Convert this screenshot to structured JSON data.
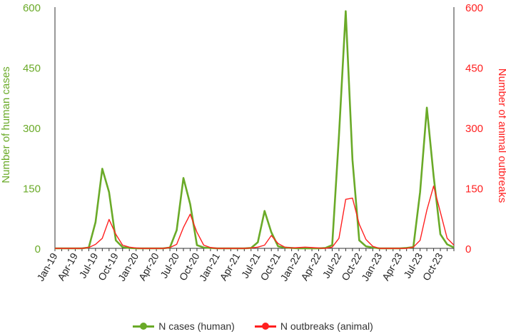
{
  "chart_data": {
    "type": "line",
    "title": "",
    "xlabel": "",
    "ylabel_left": "Number of human cases",
    "ylabel_right": "Number of animal outbreaks",
    "ylim_left": [
      0,
      600
    ],
    "ylim_right": [
      0,
      600
    ],
    "yticks_left": [
      "0",
      "150",
      "300",
      "450",
      "600"
    ],
    "yticks_right": [
      "0",
      "150",
      "300",
      "450",
      "600"
    ],
    "grid": false,
    "legend_position": "bottom",
    "x_tick_labels": [
      "Jan-19",
      "Apr-19",
      "Jul-19",
      "Oct-19",
      "Jan-20",
      "Apr-20",
      "Jul-20",
      "Oct-20",
      "Jan-21",
      "Apr-21",
      "Jul-21",
      "Oct-21",
      "Jan-22",
      "Apr-22",
      "Jul-22",
      "Oct-22",
      "Jan-23",
      "Apr-23",
      "Jul-23",
      "Oct-23"
    ],
    "x": [
      "Jan-19",
      "Feb-19",
      "Mar-19",
      "Apr-19",
      "May-19",
      "Jun-19",
      "Jul-19",
      "Aug-19",
      "Sep-19",
      "Oct-19",
      "Nov-19",
      "Dec-19",
      "Jan-20",
      "Feb-20",
      "Mar-20",
      "Apr-20",
      "May-20",
      "Jun-20",
      "Jul-20",
      "Aug-20",
      "Sep-20",
      "Oct-20",
      "Nov-20",
      "Dec-20",
      "Jan-21",
      "Feb-21",
      "Mar-21",
      "Apr-21",
      "May-21",
      "Jun-21",
      "Jul-21",
      "Aug-21",
      "Sep-21",
      "Oct-21",
      "Nov-21",
      "Dec-21",
      "Jan-22",
      "Feb-22",
      "Mar-22",
      "Apr-22",
      "May-22",
      "Jun-22",
      "Jul-22",
      "Aug-22",
      "Sep-22",
      "Oct-22",
      "Nov-22",
      "Dec-22",
      "Jan-23",
      "Feb-23",
      "Mar-23",
      "Apr-23",
      "May-23",
      "Jun-23",
      "Jul-23",
      "Aug-23",
      "Sep-23",
      "Oct-23",
      "Nov-23",
      "Dec-23"
    ],
    "series": [
      {
        "name": "N cases (human)",
        "axis": "left",
        "color": "#6aaa28",
        "marker": "circle",
        "values": [
          0,
          0,
          0,
          0,
          0,
          2,
          65,
          198,
          140,
          20,
          3,
          1,
          0,
          0,
          0,
          0,
          0,
          2,
          45,
          175,
          110,
          8,
          2,
          1,
          0,
          0,
          0,
          0,
          0,
          1,
          15,
          93,
          40,
          5,
          2,
          1,
          0,
          0,
          0,
          0,
          1,
          8,
          280,
          590,
          220,
          20,
          5,
          2,
          0,
          0,
          0,
          0,
          1,
          3,
          140,
          350,
          180,
          35,
          10,
          2
        ]
      },
      {
        "name": "N outbreaks (animal)",
        "axis": "right",
        "color": "#ff2020",
        "marker": "circle",
        "values": [
          0,
          0,
          0,
          0,
          0,
          2,
          10,
          25,
          72,
          35,
          8,
          3,
          1,
          0,
          0,
          0,
          0,
          2,
          10,
          52,
          85,
          40,
          8,
          2,
          0,
          0,
          0,
          0,
          0,
          1,
          3,
          8,
          32,
          12,
          3,
          1,
          2,
          3,
          2,
          1,
          0,
          3,
          25,
          122,
          125,
          60,
          22,
          5,
          0,
          0,
          0,
          0,
          0,
          3,
          20,
          95,
          155,
          90,
          25,
          8
        ]
      }
    ]
  }
}
